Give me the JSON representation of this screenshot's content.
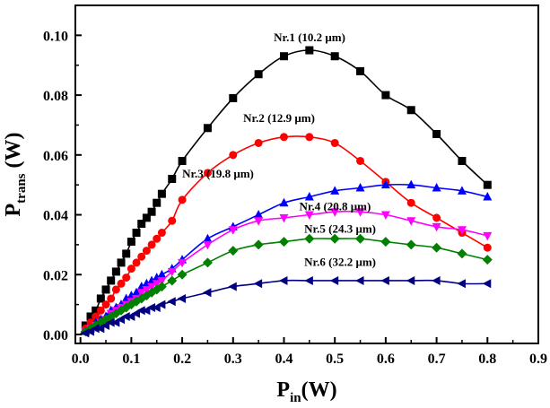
{
  "chart_data": {
    "type": "line",
    "title": "",
    "xlabel": {
      "main": "P",
      "sub": "in",
      "unit": "(W)"
    },
    "ylabel": {
      "main": "P",
      "sub": "trans",
      "unit": " (W)"
    },
    "xlim": [
      -0.01,
      0.9
    ],
    "ylim": [
      -0.003,
      0.11
    ],
    "xticks": [
      0.0,
      0.1,
      0.2,
      0.3,
      0.4,
      0.5,
      0.6,
      0.7,
      0.8,
      0.9
    ],
    "xtick_labels": [
      "0.0",
      "0.1",
      "0.2",
      "0.3",
      "0.4",
      "0.5",
      "0.6",
      "0.7",
      "0.8",
      "0.9"
    ],
    "yticks": [
      0.0,
      0.02,
      0.04,
      0.06,
      0.08,
      0.1
    ],
    "ytick_labels": [
      "0.00",
      "0.02",
      "0.04",
      "0.06",
      "0.08",
      "0.10"
    ],
    "grid": false,
    "legend": "none",
    "series": [
      {
        "name": "Nr.1 (10.2 µm)",
        "color": "#000000",
        "marker": "square",
        "label": "Nr.1 (10.2 μm)",
        "label_anchor": {
          "x": 0.38,
          "y": 0.098
        },
        "x": [
          0.01,
          0.02,
          0.03,
          0.04,
          0.05,
          0.06,
          0.07,
          0.08,
          0.09,
          0.1,
          0.11,
          0.12,
          0.13,
          0.14,
          0.15,
          0.16,
          0.18,
          0.2,
          0.25,
          0.3,
          0.35,
          0.4,
          0.45,
          0.5,
          0.55,
          0.6,
          0.65,
          0.7,
          0.75,
          0.8
        ],
        "y": [
          0.003,
          0.006,
          0.008,
          0.012,
          0.015,
          0.018,
          0.021,
          0.024,
          0.027,
          0.031,
          0.034,
          0.037,
          0.039,
          0.041,
          0.044,
          0.047,
          0.052,
          0.058,
          0.069,
          0.079,
          0.087,
          0.093,
          0.095,
          0.093,
          0.088,
          0.08,
          0.075,
          0.067,
          0.058,
          0.05
        ]
      },
      {
        "name": "Nr.2 (12.9 µm)",
        "color": "#ff0000",
        "marker": "circle",
        "label": "Nr.2 (12.9 μm)",
        "label_anchor": {
          "x": 0.32,
          "y": 0.071
        },
        "x": [
          0.01,
          0.02,
          0.03,
          0.04,
          0.05,
          0.06,
          0.07,
          0.08,
          0.09,
          0.1,
          0.11,
          0.12,
          0.13,
          0.14,
          0.15,
          0.16,
          0.18,
          0.2,
          0.25,
          0.3,
          0.35,
          0.4,
          0.45,
          0.5,
          0.55,
          0.6,
          0.65,
          0.7,
          0.75,
          0.8
        ],
        "y": [
          0.002,
          0.004,
          0.006,
          0.008,
          0.01,
          0.012,
          0.015,
          0.017,
          0.019,
          0.022,
          0.024,
          0.026,
          0.028,
          0.03,
          0.032,
          0.034,
          0.038,
          0.045,
          0.054,
          0.06,
          0.064,
          0.066,
          0.066,
          0.064,
          0.058,
          0.051,
          0.044,
          0.039,
          0.034,
          0.029
        ]
      },
      {
        "name": "Nr.3 (19.8 µm)",
        "color": "#0000ff",
        "marker": "triangle-up",
        "label": "Nr.3 (19.8 μm)",
        "label_anchor": {
          "x": 0.2,
          "y": 0.0525
        },
        "x": [
          0.01,
          0.02,
          0.03,
          0.04,
          0.05,
          0.06,
          0.07,
          0.08,
          0.09,
          0.1,
          0.11,
          0.12,
          0.13,
          0.14,
          0.15,
          0.16,
          0.18,
          0.2,
          0.25,
          0.3,
          0.35,
          0.4,
          0.45,
          0.5,
          0.55,
          0.6,
          0.65,
          0.7,
          0.75,
          0.8
        ],
        "y": [
          0.001,
          0.002,
          0.004,
          0.005,
          0.006,
          0.008,
          0.009,
          0.01,
          0.012,
          0.013,
          0.014,
          0.016,
          0.017,
          0.018,
          0.019,
          0.02,
          0.022,
          0.025,
          0.032,
          0.036,
          0.04,
          0.044,
          0.046,
          0.048,
          0.049,
          0.05,
          0.05,
          0.049,
          0.048,
          0.046
        ]
      },
      {
        "name": "Nr.4 (20.8 µm)",
        "color": "#ff00ff",
        "marker": "triangle-down",
        "label": "Nr.4 (20.8 μm)",
        "label_anchor": {
          "x": 0.43,
          "y": 0.0415
        },
        "x": [
          0.01,
          0.02,
          0.03,
          0.04,
          0.05,
          0.06,
          0.07,
          0.08,
          0.09,
          0.1,
          0.11,
          0.12,
          0.13,
          0.14,
          0.15,
          0.16,
          0.18,
          0.2,
          0.25,
          0.3,
          0.35,
          0.4,
          0.45,
          0.5,
          0.55,
          0.6,
          0.65,
          0.7,
          0.75,
          0.8
        ],
        "y": [
          0.001,
          0.002,
          0.003,
          0.004,
          0.005,
          0.007,
          0.008,
          0.009,
          0.01,
          0.011,
          0.012,
          0.014,
          0.015,
          0.016,
          0.017,
          0.018,
          0.021,
          0.024,
          0.03,
          0.035,
          0.038,
          0.039,
          0.04,
          0.041,
          0.041,
          0.04,
          0.038,
          0.036,
          0.035,
          0.033
        ]
      },
      {
        "name": "Nr.5 (24.3 µm)",
        "color": "#008000",
        "marker": "diamond",
        "label": "Nr.5 (24.3 μm)",
        "label_anchor": {
          "x": 0.44,
          "y": 0.034
        },
        "x": [
          0.01,
          0.02,
          0.03,
          0.04,
          0.05,
          0.06,
          0.07,
          0.08,
          0.09,
          0.1,
          0.11,
          0.12,
          0.13,
          0.14,
          0.15,
          0.16,
          0.18,
          0.2,
          0.25,
          0.3,
          0.35,
          0.4,
          0.45,
          0.5,
          0.55,
          0.6,
          0.65,
          0.7,
          0.75,
          0.8
        ],
        "y": [
          0.001,
          0.002,
          0.003,
          0.004,
          0.005,
          0.006,
          0.007,
          0.008,
          0.009,
          0.01,
          0.011,
          0.012,
          0.013,
          0.014,
          0.015,
          0.016,
          0.018,
          0.02,
          0.024,
          0.028,
          0.03,
          0.031,
          0.032,
          0.032,
          0.032,
          0.031,
          0.03,
          0.029,
          0.027,
          0.025
        ]
      },
      {
        "name": "Nr.6 (32.2 µm)",
        "color": "#000080",
        "marker": "triangle-left",
        "label": "Nr.6 (32.2 μm)",
        "label_anchor": {
          "x": 0.44,
          "y": 0.023
        },
        "x": [
          0.01,
          0.02,
          0.03,
          0.04,
          0.05,
          0.06,
          0.07,
          0.08,
          0.09,
          0.1,
          0.11,
          0.12,
          0.13,
          0.14,
          0.15,
          0.16,
          0.18,
          0.2,
          0.25,
          0.3,
          0.35,
          0.4,
          0.45,
          0.5,
          0.55,
          0.6,
          0.65,
          0.7,
          0.75,
          0.8
        ],
        "y": [
          0.0005,
          0.001,
          0.002,
          0.002,
          0.003,
          0.004,
          0.004,
          0.005,
          0.006,
          0.006,
          0.007,
          0.008,
          0.008,
          0.009,
          0.009,
          0.01,
          0.011,
          0.012,
          0.014,
          0.016,
          0.017,
          0.018,
          0.018,
          0.018,
          0.018,
          0.018,
          0.018,
          0.018,
          0.017,
          0.017
        ]
      }
    ]
  }
}
